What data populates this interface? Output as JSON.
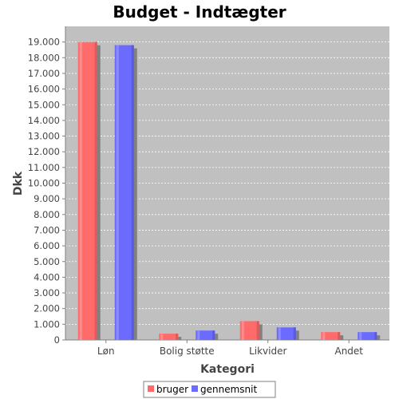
{
  "chart_data": {
    "type": "bar",
    "title": "Budget - Indtægter",
    "xlabel": "Kategori",
    "ylabel": "Dkk",
    "categories": [
      "Løn",
      "Bolig støtte",
      "Likvider",
      "Andet"
    ],
    "series": [
      {
        "name": "bruger",
        "color": "#ff6b6b",
        "values": [
          19000,
          400,
          1200,
          500
        ]
      },
      {
        "name": "gennemsnit",
        "color": "#6b6bff",
        "values": [
          18800,
          600,
          800,
          500
        ]
      }
    ],
    "ylim": [
      0,
      20000
    ],
    "yticks": [
      0,
      1000,
      2000,
      3000,
      4000,
      5000,
      6000,
      7000,
      8000,
      9000,
      10000,
      11000,
      12000,
      13000,
      14000,
      15000,
      16000,
      17000,
      18000,
      19000
    ],
    "ytick_labels": [
      "0",
      "1.000",
      "2.000",
      "3.000",
      "4.000",
      "5.000",
      "6.000",
      "7.000",
      "8.000",
      "9.000",
      "10.000",
      "11.000",
      "12.000",
      "13.000",
      "14.000",
      "15.000",
      "16.000",
      "17.000",
      "18.000",
      "19.000"
    ],
    "grid": true,
    "legend_position": "bottom-center",
    "plot_background": "#c0c0c0"
  }
}
